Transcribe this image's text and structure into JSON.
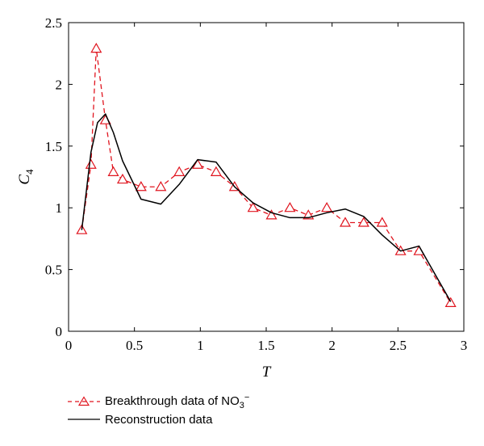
{
  "chart_data": {
    "type": "line",
    "xlabel": "T",
    "ylabel": "C",
    "ylabel_sub": "4",
    "xlim": [
      0,
      3
    ],
    "ylim": [
      0,
      2.5
    ],
    "xticks": [
      "0",
      "0.5",
      "1",
      "1.5",
      "2",
      "2.5",
      "3"
    ],
    "yticks": [
      "0",
      "0.5",
      "1",
      "1.5",
      "2",
      "2.5"
    ],
    "grid": false,
    "legend_position": "bottom",
    "series": [
      {
        "name": "Breakthrough data of NO3−",
        "style": "dashed-triangle",
        "color": "#e0141e",
        "x": [
          0.1,
          0.17,
          0.21,
          0.28,
          0.34,
          0.41,
          0.55,
          0.7,
          0.84,
          0.98,
          1.12,
          1.26,
          1.4,
          1.54,
          1.68,
          1.82,
          1.96,
          2.1,
          2.24,
          2.38,
          2.52,
          2.66,
          2.9
        ],
        "y": [
          0.82,
          1.35,
          2.29,
          1.71,
          1.29,
          1.23,
          1.17,
          1.17,
          1.29,
          1.35,
          1.29,
          1.17,
          1.0,
          0.94,
          1.0,
          0.94,
          1.0,
          0.88,
          0.88,
          0.88,
          0.65,
          0.65,
          0.23
        ]
      },
      {
        "name": "Reconstruction data",
        "style": "solid",
        "color": "#000000",
        "x": [
          0.1,
          0.17,
          0.22,
          0.28,
          0.34,
          0.41,
          0.55,
          0.7,
          0.84,
          0.98,
          1.12,
          1.26,
          1.4,
          1.54,
          1.68,
          1.82,
          1.96,
          2.1,
          2.24,
          2.38,
          2.52,
          2.66,
          2.9
        ],
        "y": [
          0.82,
          1.45,
          1.69,
          1.76,
          1.61,
          1.38,
          1.07,
          1.03,
          1.19,
          1.39,
          1.37,
          1.17,
          1.04,
          0.96,
          0.92,
          0.92,
          0.96,
          0.99,
          0.93,
          0.78,
          0.65,
          0.69,
          0.24
        ]
      }
    ]
  },
  "legend": {
    "series1_prefix": "Breakthrough data of NO",
    "series1_sub": "3",
    "series1_sup": "−",
    "series2_label": "Reconstruction data"
  }
}
